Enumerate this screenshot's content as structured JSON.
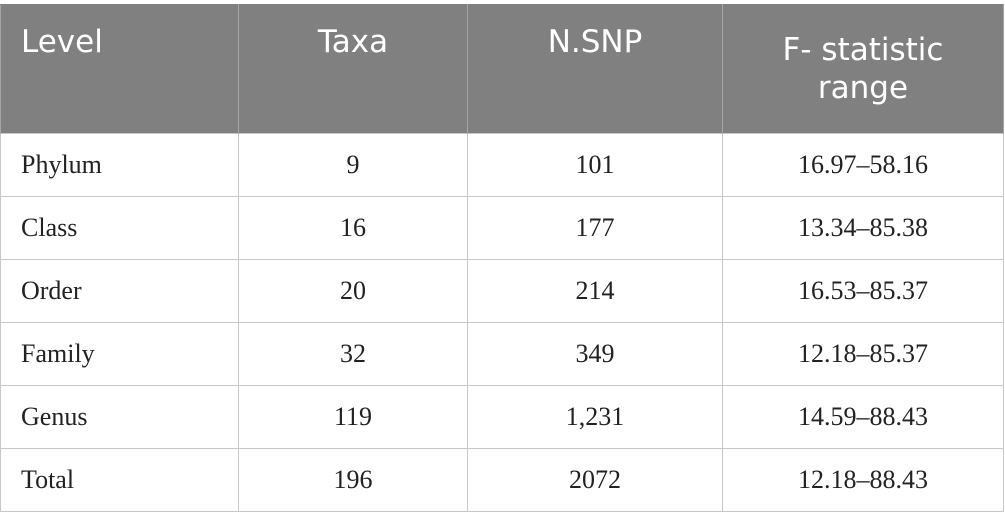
{
  "table": {
    "headers": {
      "level": "Level",
      "taxa": "Taxa",
      "n_snp": "N.SNP",
      "f_statistic_range": "F- statistic range"
    },
    "rows": [
      {
        "level": "Phylum",
        "taxa": "9",
        "n_snp": "101",
        "f_range": "16.97–58.16"
      },
      {
        "level": "Class",
        "taxa": "16",
        "n_snp": "177",
        "f_range": "13.34–85.38"
      },
      {
        "level": "Order",
        "taxa": "20",
        "n_snp": "214",
        "f_range": "16.53–85.37"
      },
      {
        "level": "Family",
        "taxa": "32",
        "n_snp": "349",
        "f_range": "12.18–85.37"
      },
      {
        "level": "Genus",
        "taxa": "119",
        "n_snp": "1,231",
        "f_range": "14.59–88.43"
      },
      {
        "level": "Total",
        "taxa": "196",
        "n_snp": "2072",
        "f_range": "12.18–88.43"
      }
    ]
  }
}
